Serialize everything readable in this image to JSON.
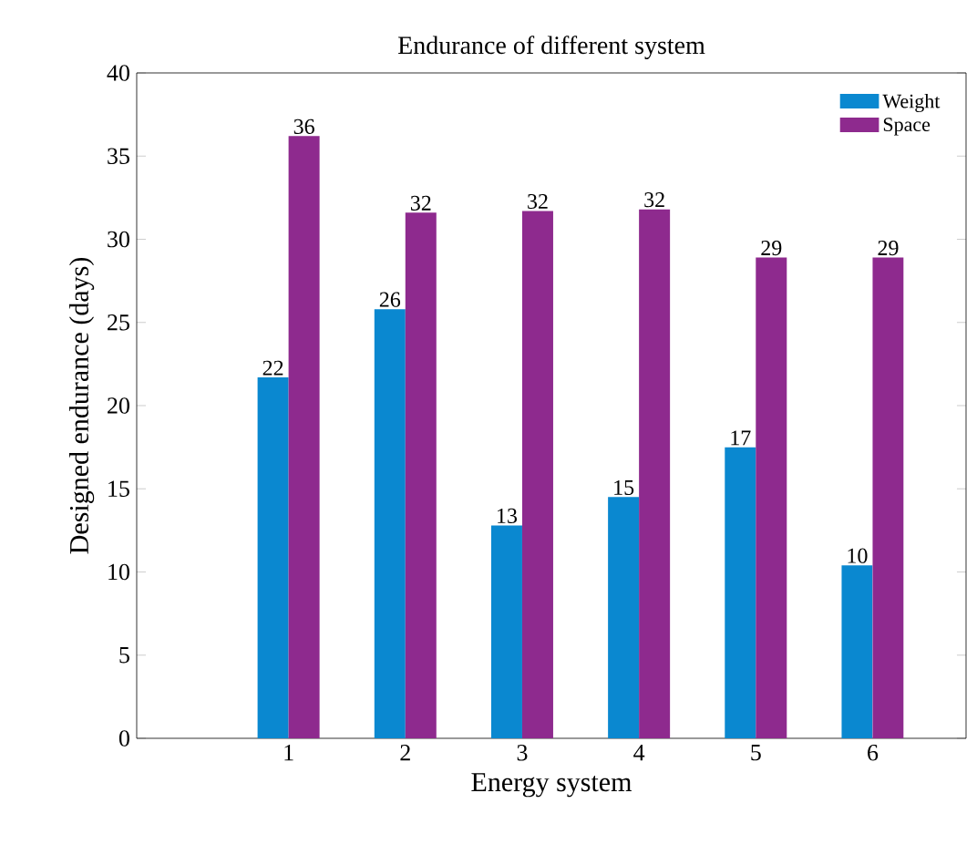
{
  "chart_data": {
    "type": "bar",
    "title": "Endurance of different system",
    "xlabel": "Energy system",
    "ylabel": "Designed endurance (days)",
    "categories": [
      "1",
      "2",
      "3",
      "4",
      "5",
      "6"
    ],
    "series": [
      {
        "name": "Weight",
        "color": "#0a88d0",
        "values": [
          21.7,
          25.8,
          12.8,
          14.5,
          17.5,
          10.4
        ],
        "value_labels": [
          "22",
          "26",
          "13",
          "15",
          "17",
          "10"
        ]
      },
      {
        "name": "Space",
        "color": "#8e2a8e",
        "values": [
          36.2,
          31.6,
          31.7,
          31.8,
          28.9,
          28.9
        ],
        "value_labels": [
          "36",
          "32",
          "32",
          "32",
          "29",
          "29"
        ]
      }
    ],
    "ylim": [
      0,
      40
    ],
    "yticks": [
      0,
      5,
      10,
      15,
      20,
      25,
      30,
      35,
      40
    ],
    "legend": "top right",
    "grid": false
  }
}
